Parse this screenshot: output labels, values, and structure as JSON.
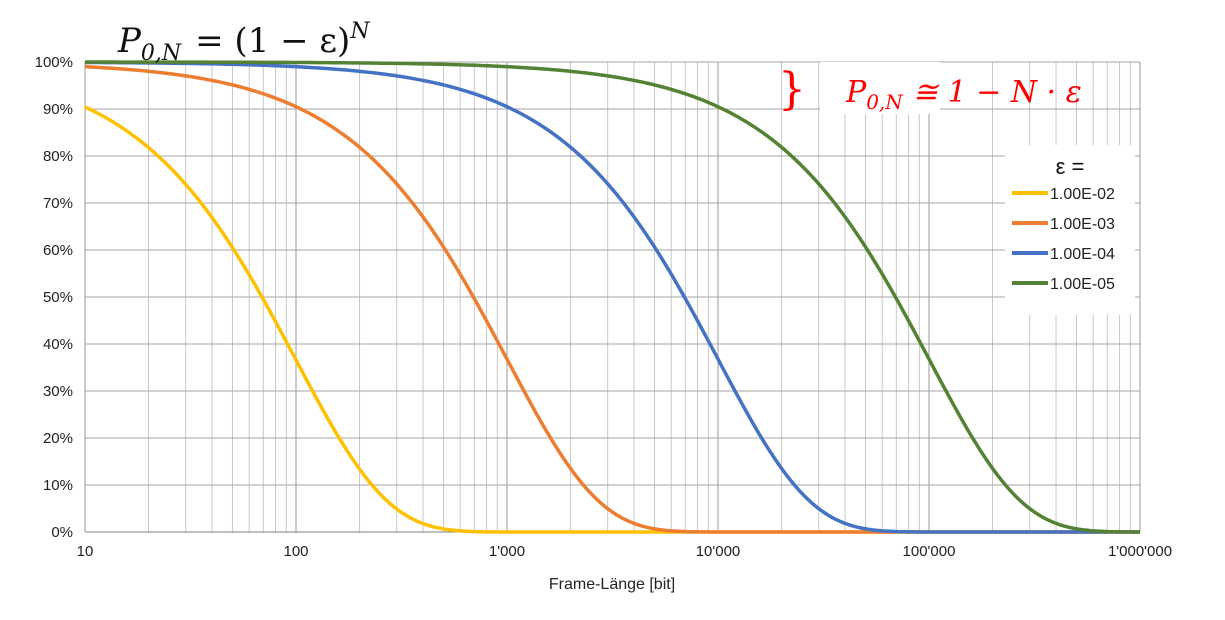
{
  "chart_data": {
    "type": "line",
    "title": "",
    "formula_main": {
      "lhs": "P",
      "lhs_sub": "0,N",
      "rhs": "= (1 − ε)",
      "rhs_sup": "N"
    },
    "formula_approx": {
      "lhs": "P",
      "lhs_sub": "0,N",
      "rhs": "≅ 1 − N · ε",
      "brace": "}",
      "color": "#ff0000"
    },
    "xlabel": "Frame-Länge [bit]",
    "ylabel": "",
    "x_scale": "log",
    "xlim": [
      10,
      1000000
    ],
    "ylim": [
      0,
      1
    ],
    "x_ticks": [
      10,
      100,
      1000,
      10000,
      100000,
      1000000
    ],
    "x_tick_labels": [
      "10",
      "100",
      "1'000",
      "10'000",
      "100'000",
      "1'000'000"
    ],
    "y_ticks": [
      0,
      0.1,
      0.2,
      0.3,
      0.4,
      0.5,
      0.6,
      0.7,
      0.8,
      0.9,
      1.0
    ],
    "y_tick_labels": [
      "0%",
      "10%",
      "20%",
      "30%",
      "40%",
      "50%",
      "60%",
      "70%",
      "80%",
      "90%",
      "100%"
    ],
    "grid": true,
    "function": "y = (1 - epsilon)^x",
    "legend": {
      "title": "ε =",
      "position": "right"
    },
    "series": [
      {
        "name": "1.00E-02",
        "epsilon": 0.01,
        "color": "#ffc000"
      },
      {
        "name": "1.00E-03",
        "epsilon": 0.001,
        "color": "#ed7d31"
      },
      {
        "name": "1.00E-04",
        "epsilon": 0.0001,
        "color": "#4472c4"
      },
      {
        "name": "1.00E-05",
        "epsilon": 1e-05,
        "color": "#548235"
      }
    ]
  }
}
